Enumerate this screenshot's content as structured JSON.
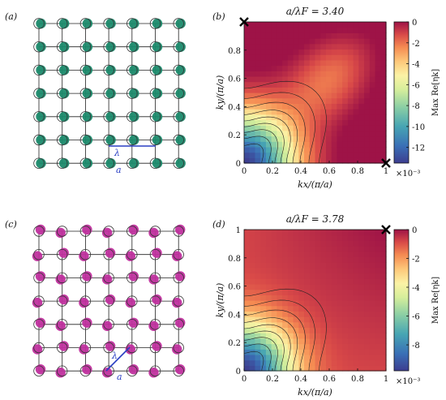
{
  "panels": {
    "a": "(a)",
    "b": "(b)",
    "c": "(c)",
    "d": "(d)"
  },
  "lattice_a": {
    "lambda": "λ",
    "a": "a",
    "drop_color": "#1b8a6b",
    "ring_color": "#333333",
    "link_color": "#2a3fc4"
  },
  "lattice_c": {
    "lambda": "λ",
    "a": "a",
    "drop_color": "#c0309e",
    "ring_color": "#333333",
    "link_color": "#2a3fc4"
  },
  "chart_data": [
    {
      "type": "heatmap",
      "panel": "(b)",
      "title": "a/λF = 3.40",
      "xlabel": "kx/(π/a)",
      "ylabel": "ky/(π/a)",
      "xlim": [
        0,
        1
      ],
      "ylim": [
        0,
        1
      ],
      "xticks": [
        "0",
        "0.2",
        "0.4",
        "0.6",
        "0.8",
        "1"
      ],
      "yticks": [
        "0",
        "0.2",
        "0.4",
        "0.6",
        "0.8"
      ],
      "colorbar": {
        "label": "Max Re[ηk]",
        "scale": "×10⁻³",
        "range": [
          -13.5,
          0
        ],
        "ticks": [
          "0",
          "-2",
          "-4",
          "-6",
          "-8",
          "-10",
          "-12"
        ]
      },
      "colormap": "Spectral",
      "markers": [
        {
          "x": 0,
          "y": 1,
          "shape": "x"
        },
        {
          "x": 1,
          "y": 0,
          "shape": "x"
        }
      ],
      "contours": true
    },
    {
      "type": "heatmap",
      "panel": "(d)",
      "title": "a/λF = 3.78",
      "xlabel": "kx/(π/a)",
      "ylabel": "ky/(π/a)",
      "xlim": [
        0,
        1
      ],
      "ylim": [
        0,
        1
      ],
      "xticks": [
        "0",
        "0.2",
        "0.4",
        "0.6",
        "0.8",
        "1"
      ],
      "yticks": [
        "0",
        "0.2",
        "0.4",
        "0.6",
        "0.8",
        "1"
      ],
      "colorbar": {
        "label": "Max Re[ηk]",
        "scale": "×10⁻³",
        "range": [
          -9.8,
          0
        ],
        "ticks": [
          "0",
          "-2",
          "-4",
          "-6",
          "-8"
        ]
      },
      "colormap": "Spectral",
      "markers": [
        {
          "x": 1,
          "y": 1,
          "shape": "x"
        }
      ],
      "contours": true
    }
  ]
}
